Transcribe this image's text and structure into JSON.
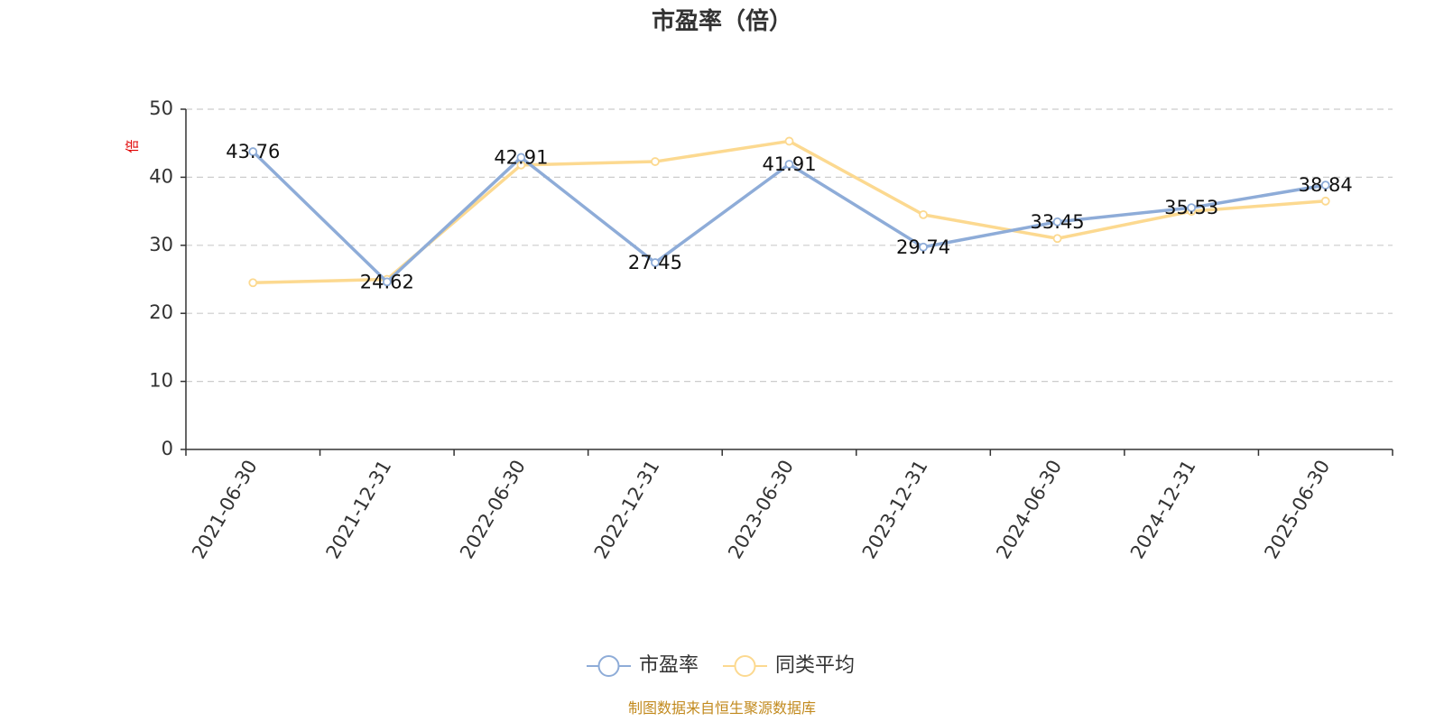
{
  "chart_data": {
    "type": "line",
    "title": "市盈率（倍）",
    "ylabel": "倍",
    "categories": [
      "2021-06-30",
      "2021-12-31",
      "2022-06-30",
      "2022-12-31",
      "2023-06-30",
      "2023-12-31",
      "2024-06-30",
      "2024-12-31",
      "2025-06-30"
    ],
    "ylim": [
      0,
      50
    ],
    "yticks": [
      0,
      10,
      20,
      30,
      40,
      50
    ],
    "grid": true,
    "legend": "bottom-center",
    "series": [
      {
        "name": "市盈率",
        "color": "#8eacd8",
        "values": [
          43.76,
          24.62,
          42.91,
          27.45,
          41.91,
          29.74,
          33.45,
          35.53,
          38.84
        ],
        "labels": [
          "43.76",
          "24.62",
          "42.91",
          "27.45",
          "41.91",
          "29.74",
          "33.45",
          "35.53",
          "38.84"
        ]
      },
      {
        "name": "同类平均",
        "color": "#fcd990",
        "values": [
          24.5,
          25.0,
          41.8,
          42.3,
          45.3,
          34.5,
          31.0,
          35.0,
          36.5
        ]
      }
    ]
  },
  "source_text": "制图数据来自恒生聚源数据库"
}
